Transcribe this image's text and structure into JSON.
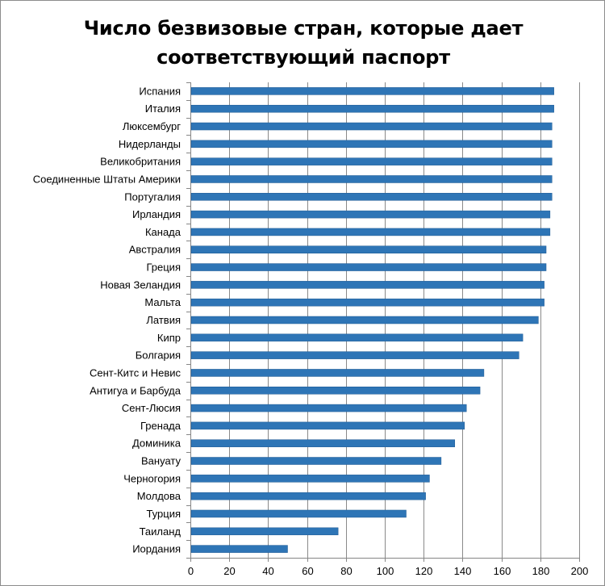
{
  "chart_data": {
    "type": "bar",
    "orientation": "horizontal",
    "title": "Число безвизовые стран, которые дает соответствующий паспорт",
    "xlim": [
      0,
      200
    ],
    "x_ticks": [
      "0",
      "20",
      "40",
      "60",
      "80",
      "100",
      "120",
      "140",
      "160",
      "180",
      "200"
    ],
    "grid": true,
    "bar_color": "#2E75B6",
    "categories": [
      "Испания",
      "Италия",
      "Люксембург",
      "Нидерланды",
      "Великобритания",
      "Соединенные Штаты Америки",
      "Португалия",
      "Ирландия",
      "Канада",
      "Австралия",
      "Греция",
      "Новая Зеландия",
      "Мальта",
      "Латвия",
      "Кипр",
      "Болгария",
      "Сент-Китс и Невис",
      "Антигуа и Барбуда",
      "Сент-Люсия",
      "Гренада",
      "Доминика",
      "Вануату",
      "Черногория",
      "Молдова",
      "Турция",
      "Таиланд",
      "Иордания"
    ],
    "values": [
      187,
      187,
      186,
      186,
      186,
      186,
      186,
      185,
      185,
      183,
      183,
      182,
      182,
      179,
      171,
      169,
      151,
      149,
      142,
      141,
      136,
      129,
      123,
      121,
      111,
      76,
      50
    ]
  }
}
